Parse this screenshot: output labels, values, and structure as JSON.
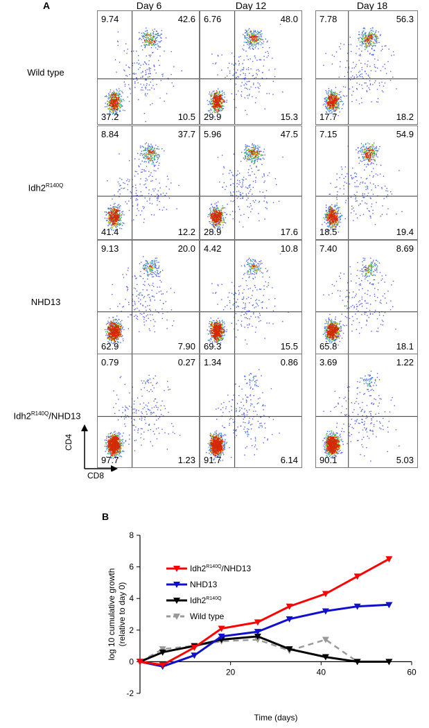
{
  "panel_a": {
    "letter": "A",
    "days": [
      "Day 6",
      "Day 12",
      "Day 18"
    ],
    "genotypes": [
      {
        "name": "Wild type",
        "sup": ""
      },
      {
        "name": "Idh2",
        "sup": "R140Q"
      },
      {
        "name": "NHD13",
        "sup": ""
      },
      {
        "name": "Idh2",
        "sup": "R140Q",
        "suffix": "/NHD13"
      }
    ],
    "quadrants": [
      [
        {
          "tl": "9.74",
          "tr": "42.6",
          "bl": "37.2",
          "br": "10.5"
        },
        {
          "tl": "6.76",
          "tr": "48.0",
          "bl": "29.9",
          "br": "15.3"
        },
        {
          "tl": "7.78",
          "tr": "56.3",
          "bl": "17.7",
          "br": "18.2"
        }
      ],
      [
        {
          "tl": "8.84",
          "tr": "37.7",
          "bl": "41.4",
          "br": "12.2"
        },
        {
          "tl": "5.96",
          "tr": "47.5",
          "bl": "28.9",
          "br": "17.6"
        },
        {
          "tl": "7.15",
          "tr": "54.9",
          "bl": "18.5",
          "br": "19.4"
        }
      ],
      [
        {
          "tl": "9.13",
          "tr": "20.0",
          "bl": "62.9",
          "br": "7.90"
        },
        {
          "tl": "4.42",
          "tr": "10.8",
          "bl": "69.3",
          "br": "15.5"
        },
        {
          "tl": "7.40",
          "tr": "8.69",
          "bl": "65.8",
          "br": "18.1"
        }
      ],
      [
        {
          "tl": "0.79",
          "tr": "0.27",
          "bl": "97.7",
          "br": "1.23"
        },
        {
          "tl": "1.34",
          "tr": "0.86",
          "bl": "91.7",
          "br": "6.14"
        },
        {
          "tl": "3.69",
          "tr": "1.22",
          "bl": "90.1",
          "br": "5.03"
        }
      ]
    ],
    "y_axis_label": "CD4",
    "x_axis_label": "CD8"
  },
  "chart_data": {
    "type": "line",
    "panel_letter": "B",
    "xlabel": "Time (days)",
    "ylabel_line1": "log 10 cumulative growth",
    "ylabel_line2": "(relative to day 0)",
    "xlim": [
      0,
      60
    ],
    "ylim": [
      -2,
      8
    ],
    "xticks": [
      20,
      40,
      60
    ],
    "yticks": [
      -2,
      0,
      2,
      4,
      6,
      8
    ],
    "legend_position": "upper-left",
    "series": [
      {
        "name": "Idh2",
        "name_sup": "R140Q",
        "name_suffix": "/NHD13",
        "color": "#ff0000",
        "marker": "triangle-down",
        "dashed": false,
        "x": [
          0,
          5,
          12,
          18,
          26,
          33,
          41,
          48,
          55
        ],
        "y": [
          0.0,
          -0.2,
          0.9,
          2.1,
          2.5,
          3.5,
          4.3,
          5.4,
          6.5
        ]
      },
      {
        "name": "NHD13",
        "color": "#1010cc",
        "marker": "triangle-down",
        "dashed": false,
        "x": [
          0,
          5,
          12,
          18,
          26,
          33,
          41,
          48,
          55
        ],
        "y": [
          0.0,
          -0.3,
          0.4,
          1.6,
          1.9,
          2.7,
          3.2,
          3.5,
          3.6
        ]
      },
      {
        "name": "Idh2",
        "name_sup": "R140Q",
        "color": "#000000",
        "marker": "triangle-down",
        "dashed": false,
        "x": [
          0,
          5,
          12,
          18,
          26,
          33,
          41,
          48,
          55
        ],
        "y": [
          0.0,
          0.6,
          1.0,
          1.4,
          1.6,
          0.8,
          0.3,
          0.0,
          0.0
        ]
      },
      {
        "name": "Wild type",
        "color": "#999999",
        "marker": "triangle-down",
        "dashed": true,
        "x": [
          0,
          5,
          12,
          18,
          26,
          33,
          41,
          48,
          55
        ],
        "y": [
          0.0,
          0.8,
          1.0,
          1.3,
          1.4,
          0.7,
          1.4,
          0.0,
          0.0
        ]
      }
    ]
  }
}
